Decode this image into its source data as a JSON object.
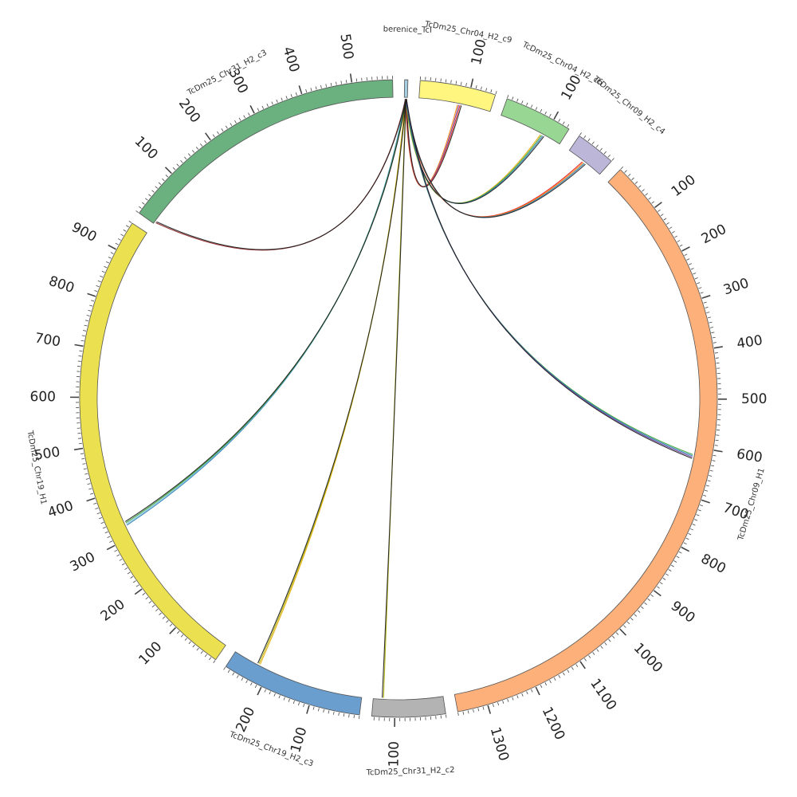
{
  "chart_data": {
    "type": "chord",
    "title": "",
    "segments": [
      {
        "name": "berenice_TcI",
        "length": 6,
        "color": "#a6cee3",
        "major_ticks": []
      },
      {
        "name": "TcDm25_Chr04_H2_c9",
        "length": 150,
        "color": "#fff67f",
        "major_ticks": [
          100
        ]
      },
      {
        "name": "TcDm25_Chr04_H2_c6",
        "length": 135,
        "color": "#98d694",
        "major_ticks": [
          100
        ]
      },
      {
        "name": "TcDm25_Chr09_H2_c4",
        "length": 80,
        "color": "#bcb6d9",
        "major_ticks": []
      },
      {
        "name": "TcDm25_Chr09_H1",
        "length": 1360,
        "color": "#fdb07a",
        "major_ticks": [
          100,
          200,
          300,
          400,
          500,
          600,
          700,
          800,
          900,
          1000,
          1100,
          1200,
          1300
        ]
      },
      {
        "name": "TcDm25_Chr31_H2_c2",
        "length": 145,
        "color": "#b3b3b3",
        "major_ticks": [
          100
        ]
      },
      {
        "name": "TcDm25_Chr19_H2_c3",
        "length": 280,
        "color": "#6a9ecf",
        "major_ticks": [
          100,
          200
        ]
      },
      {
        "name": "TcDm25_Chr19_H1",
        "length": 960,
        "color": "#ebe04f",
        "major_ticks": [
          100,
          200,
          300,
          400,
          500,
          600,
          700,
          800,
          900
        ]
      },
      {
        "name": "TcDm25_Chr31_H2_c3",
        "length": 580,
        "color": "#6bb07f",
        "major_ticks": [
          100,
          200,
          300,
          400,
          500
        ]
      }
    ],
    "links": [
      {
        "from": "berenice_TcI",
        "from_pos": 3,
        "to": "TcDm25_Chr04_H2_c9",
        "to_pos": 85,
        "colors": [
          "#ff7f00",
          "#6a3d9a",
          "#e31a1c",
          "#1b1b1b"
        ]
      },
      {
        "from": "berenice_TcI",
        "from_pos": 3,
        "to": "TcDm25_Chr04_H2_c6",
        "to_pos": 95,
        "colors": [
          "#e6ab02",
          "#33a02c",
          "#1f78b4",
          "#1b1b1b"
        ]
      },
      {
        "from": "berenice_TcI",
        "from_pos": 3,
        "to": "TcDm25_Chr09_H2_c4",
        "to_pos": 40,
        "colors": [
          "#e31a1c",
          "#ff7f00",
          "#1f78b4",
          "#1b1b1b"
        ]
      },
      {
        "from": "berenice_TcI",
        "from_pos": 3,
        "to": "TcDm25_Chr09_H1",
        "to_pos": 620,
        "colors": [
          "#33a02c",
          "#1f78b4",
          "#6a3d9a",
          "#1b1b1b"
        ]
      },
      {
        "from": "berenice_TcI",
        "from_pos": 3,
        "to": "TcDm25_Chr31_H2_c2",
        "to_pos": 125,
        "colors": [
          "#b2b200",
          "#1b1b1b"
        ]
      },
      {
        "from": "berenice_TcI",
        "from_pos": 3,
        "to": "TcDm25_Chr19_H2_c3",
        "to_pos": 225,
        "colors": [
          "#e6ab02",
          "#b2b200",
          "#1b1b1b"
        ]
      },
      {
        "from": "berenice_TcI",
        "from_pos": 3,
        "to": "TcDm25_Chr19_H1",
        "to_pos": 330,
        "colors": [
          "#1f78b4",
          "#6bb7d6",
          "#33a02c",
          "#1b1b1b"
        ]
      },
      {
        "from": "berenice_TcI",
        "from_pos": 3,
        "to": "TcDm25_Chr31_H2_c3",
        "to_pos": 5,
        "colors": [
          "#8b1a1a",
          "#1b1b1b"
        ]
      }
    ]
  }
}
